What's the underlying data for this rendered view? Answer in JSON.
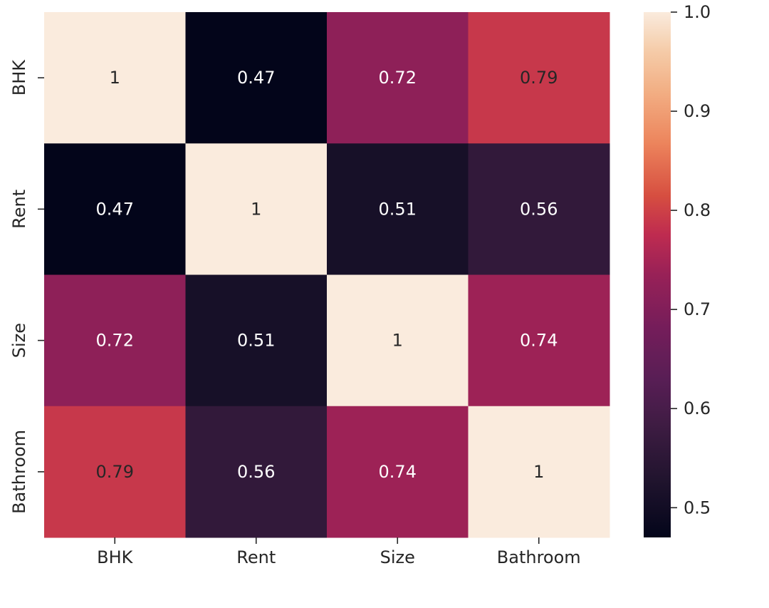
{
  "chart_data": {
    "type": "heatmap",
    "rows": [
      "BHK",
      "Rent",
      "Size",
      "Bathroom"
    ],
    "columns": [
      "BHK",
      "Rent",
      "Size",
      "Bathroom"
    ],
    "values": [
      [
        1,
        0.47,
        0.72,
        0.79
      ],
      [
        0.47,
        1,
        0.51,
        0.56
      ],
      [
        0.72,
        0.51,
        1,
        0.74
      ],
      [
        0.79,
        0.56,
        0.74,
        1
      ]
    ],
    "annotations": [
      [
        "1",
        "0.47",
        "0.72",
        "0.79"
      ],
      [
        "0.47",
        "1",
        "0.51",
        "0.56"
      ],
      [
        "0.72",
        "0.51",
        "1",
        "0.74"
      ],
      [
        "0.79",
        "0.56",
        "0.74",
        "1"
      ]
    ],
    "colormap": "rocket",
    "color_range": [
      0.47,
      1.0
    ],
    "colorbar": {
      "ticks": [
        0.5,
        0.6,
        0.7,
        0.8,
        0.9,
        1.0
      ],
      "tick_labels": [
        "0.5",
        "0.6",
        "0.7",
        "0.8",
        "0.9",
        "1.0"
      ],
      "placement": "right"
    },
    "title": "",
    "xlabel": "",
    "ylabel": ""
  }
}
